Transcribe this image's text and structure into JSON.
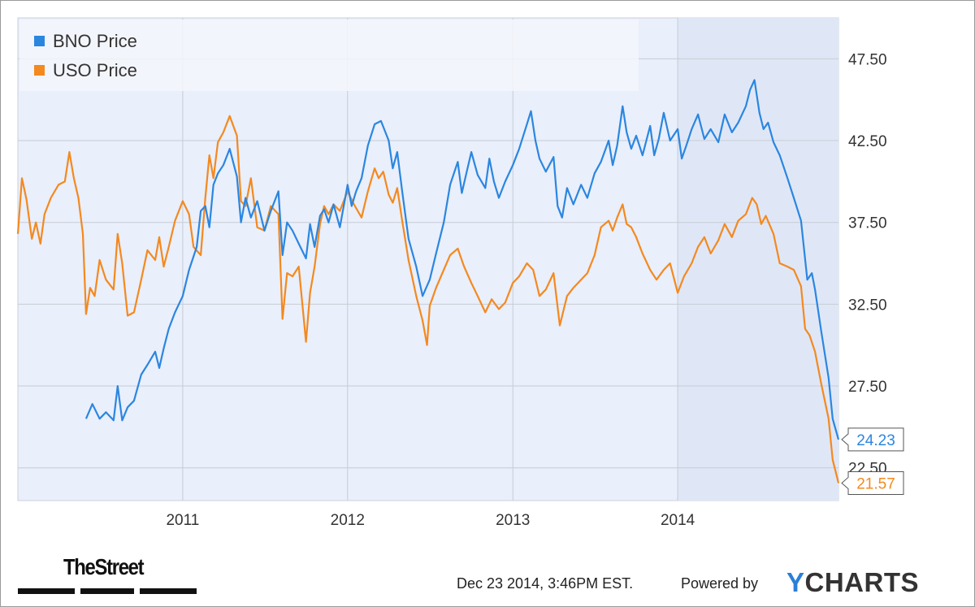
{
  "chart_data": {
    "type": "line",
    "x_axis": {
      "type": "date",
      "range": [
        "2010-01-01",
        "2014-12-23"
      ],
      "tick_labels": [
        "2011",
        "2012",
        "2013",
        "2014"
      ]
    },
    "y_axis": {
      "position": "right",
      "range": [
        20.5,
        50.0
      ],
      "ticks": [
        22.5,
        27.5,
        32.5,
        37.5,
        42.5,
        47.5
      ],
      "tick_labels": [
        "22.50",
        "27.50",
        "32.50",
        "37.50",
        "42.50",
        "47.50"
      ]
    },
    "grid": true,
    "legend": {
      "placement": "top-left"
    },
    "series": [
      {
        "name": "BNO Price",
        "color": "#2b86e0",
        "last_value_label": "24.23",
        "points": [
          [
            "2010-06-01",
            25.5
          ],
          [
            "2010-06-15",
            26.4
          ],
          [
            "2010-07-01",
            25.5
          ],
          [
            "2010-07-15",
            25.9
          ],
          [
            "2010-08-01",
            25.4
          ],
          [
            "2010-08-10",
            27.5
          ],
          [
            "2010-08-20",
            25.4
          ],
          [
            "2010-09-01",
            26.2
          ],
          [
            "2010-09-15",
            26.6
          ],
          [
            "2010-10-01",
            28.2
          ],
          [
            "2010-10-15",
            28.8
          ],
          [
            "2010-11-01",
            29.6
          ],
          [
            "2010-11-10",
            28.6
          ],
          [
            "2010-11-20",
            29.8
          ],
          [
            "2010-12-01",
            31.0
          ],
          [
            "2010-12-15",
            32.0
          ],
          [
            "2011-01-01",
            33.0
          ],
          [
            "2011-01-15",
            34.6
          ],
          [
            "2011-02-01",
            36.0
          ],
          [
            "2011-02-10",
            38.2
          ],
          [
            "2011-02-20",
            38.5
          ],
          [
            "2011-03-01",
            37.2
          ],
          [
            "2011-03-10",
            39.8
          ],
          [
            "2011-03-20",
            40.5
          ],
          [
            "2011-04-01",
            41.0
          ],
          [
            "2011-04-15",
            42.0
          ],
          [
            "2011-05-01",
            40.3
          ],
          [
            "2011-05-10",
            37.5
          ],
          [
            "2011-05-20",
            39.0
          ],
          [
            "2011-06-01",
            37.8
          ],
          [
            "2011-06-15",
            38.8
          ],
          [
            "2011-07-01",
            37.0
          ],
          [
            "2011-07-15",
            38.2
          ],
          [
            "2011-08-01",
            39.4
          ],
          [
            "2011-08-10",
            35.5
          ],
          [
            "2011-08-20",
            37.5
          ],
          [
            "2011-09-01",
            37.0
          ],
          [
            "2011-09-15",
            36.2
          ],
          [
            "2011-10-01",
            35.3
          ],
          [
            "2011-10-10",
            37.4
          ],
          [
            "2011-10-20",
            36.0
          ],
          [
            "2011-11-01",
            37.9
          ],
          [
            "2011-11-10",
            38.3
          ],
          [
            "2011-11-20",
            37.5
          ],
          [
            "2011-12-01",
            38.6
          ],
          [
            "2011-12-15",
            37.2
          ],
          [
            "2012-01-01",
            39.8
          ],
          [
            "2012-01-10",
            38.5
          ],
          [
            "2012-01-20",
            39.4
          ],
          [
            "2012-02-01",
            40.2
          ],
          [
            "2012-02-15",
            42.2
          ],
          [
            "2012-03-01",
            43.5
          ],
          [
            "2012-03-15",
            43.7
          ],
          [
            "2012-04-01",
            42.5
          ],
          [
            "2012-04-10",
            40.8
          ],
          [
            "2012-04-20",
            41.8
          ],
          [
            "2012-05-01",
            39.4
          ],
          [
            "2012-05-15",
            36.5
          ],
          [
            "2012-06-01",
            34.8
          ],
          [
            "2012-06-15",
            33.0
          ],
          [
            "2012-07-01",
            34.0
          ],
          [
            "2012-07-15",
            35.6
          ],
          [
            "2012-08-01",
            37.5
          ],
          [
            "2012-08-15",
            39.8
          ],
          [
            "2012-09-01",
            41.2
          ],
          [
            "2012-09-10",
            39.3
          ],
          [
            "2012-09-20",
            40.5
          ],
          [
            "2012-10-01",
            41.8
          ],
          [
            "2012-10-15",
            40.4
          ],
          [
            "2012-11-01",
            39.6
          ],
          [
            "2012-11-10",
            41.4
          ],
          [
            "2012-11-20",
            40.0
          ],
          [
            "2012-12-01",
            39.0
          ],
          [
            "2012-12-15",
            40.0
          ],
          [
            "2013-01-01",
            41.0
          ],
          [
            "2013-01-15",
            42.0
          ],
          [
            "2013-02-01",
            43.5
          ],
          [
            "2013-02-10",
            44.3
          ],
          [
            "2013-02-20",
            42.5
          ],
          [
            "2013-03-01",
            41.4
          ],
          [
            "2013-03-15",
            40.6
          ],
          [
            "2013-04-01",
            41.5
          ],
          [
            "2013-04-10",
            38.5
          ],
          [
            "2013-04-20",
            37.8
          ],
          [
            "2013-05-01",
            39.6
          ],
          [
            "2013-05-15",
            38.6
          ],
          [
            "2013-06-01",
            39.8
          ],
          [
            "2013-06-15",
            39.0
          ],
          [
            "2013-07-01",
            40.5
          ],
          [
            "2013-07-15",
            41.2
          ],
          [
            "2013-08-01",
            42.5
          ],
          [
            "2013-08-10",
            41.0
          ],
          [
            "2013-08-20",
            42.2
          ],
          [
            "2013-09-01",
            44.6
          ],
          [
            "2013-09-10",
            43.0
          ],
          [
            "2013-09-20",
            42.0
          ],
          [
            "2013-10-01",
            42.8
          ],
          [
            "2013-10-15",
            41.6
          ],
          [
            "2013-11-01",
            43.4
          ],
          [
            "2013-11-10",
            41.6
          ],
          [
            "2013-11-20",
            42.6
          ],
          [
            "2013-12-01",
            44.2
          ],
          [
            "2013-12-15",
            42.5
          ],
          [
            "2014-01-01",
            43.2
          ],
          [
            "2014-01-10",
            41.4
          ],
          [
            "2014-01-20",
            42.2
          ],
          [
            "2014-02-01",
            43.2
          ],
          [
            "2014-02-15",
            44.1
          ],
          [
            "2014-03-01",
            42.6
          ],
          [
            "2014-03-15",
            43.2
          ],
          [
            "2014-04-01",
            42.4
          ],
          [
            "2014-04-15",
            44.1
          ],
          [
            "2014-05-01",
            43.0
          ],
          [
            "2014-05-15",
            43.6
          ],
          [
            "2014-06-01",
            44.6
          ],
          [
            "2014-06-10",
            45.6
          ],
          [
            "2014-06-20",
            46.2
          ],
          [
            "2014-07-01",
            44.2
          ],
          [
            "2014-07-10",
            43.2
          ],
          [
            "2014-07-20",
            43.6
          ],
          [
            "2014-08-01",
            42.4
          ],
          [
            "2014-08-15",
            41.6
          ],
          [
            "2014-09-01",
            40.2
          ],
          [
            "2014-09-15",
            39.0
          ],
          [
            "2014-10-01",
            37.6
          ],
          [
            "2014-10-15",
            34.0
          ],
          [
            "2014-10-25",
            34.4
          ],
          [
            "2014-11-01",
            33.4
          ],
          [
            "2014-11-15",
            30.8
          ],
          [
            "2014-12-01",
            28.0
          ],
          [
            "2014-12-10",
            25.5
          ],
          [
            "2014-12-23",
            24.23
          ]
        ]
      },
      {
        "name": "USO Price",
        "color": "#f4891f",
        "last_value_label": "21.57",
        "points": [
          [
            "2010-01-01",
            36.8
          ],
          [
            "2010-01-10",
            40.2
          ],
          [
            "2010-01-20",
            38.9
          ],
          [
            "2010-02-01",
            36.5
          ],
          [
            "2010-02-10",
            37.5
          ],
          [
            "2010-02-20",
            36.2
          ],
          [
            "2010-03-01",
            38.0
          ],
          [
            "2010-03-15",
            39.0
          ],
          [
            "2010-04-01",
            39.8
          ],
          [
            "2010-04-15",
            40.0
          ],
          [
            "2010-04-25",
            41.8
          ],
          [
            "2010-05-05",
            40.2
          ],
          [
            "2010-05-15",
            39.0
          ],
          [
            "2010-05-25",
            36.8
          ],
          [
            "2010-06-01",
            31.9
          ],
          [
            "2010-06-10",
            33.5
          ],
          [
            "2010-06-20",
            33.0
          ],
          [
            "2010-07-01",
            35.2
          ],
          [
            "2010-07-15",
            34.0
          ],
          [
            "2010-08-01",
            33.4
          ],
          [
            "2010-08-10",
            36.8
          ],
          [
            "2010-08-20",
            35.0
          ],
          [
            "2010-09-01",
            31.8
          ],
          [
            "2010-09-15",
            32.0
          ],
          [
            "2010-10-01",
            34.0
          ],
          [
            "2010-10-15",
            35.8
          ],
          [
            "2010-11-01",
            35.2
          ],
          [
            "2010-11-10",
            36.6
          ],
          [
            "2010-11-20",
            34.8
          ],
          [
            "2010-12-01",
            36.0
          ],
          [
            "2010-12-15",
            37.6
          ],
          [
            "2011-01-01",
            38.8
          ],
          [
            "2011-01-15",
            38.0
          ],
          [
            "2011-01-25",
            36.0
          ],
          [
            "2011-02-10",
            35.5
          ],
          [
            "2011-02-20",
            39.0
          ],
          [
            "2011-03-01",
            41.6
          ],
          [
            "2011-03-10",
            40.2
          ],
          [
            "2011-03-20",
            42.4
          ],
          [
            "2011-04-01",
            43.0
          ],
          [
            "2011-04-15",
            44.0
          ],
          [
            "2011-05-01",
            42.8
          ],
          [
            "2011-05-10",
            38.8
          ],
          [
            "2011-05-20",
            38.5
          ],
          [
            "2011-06-01",
            40.2
          ],
          [
            "2011-06-15",
            37.2
          ],
          [
            "2011-07-01",
            37.0
          ],
          [
            "2011-07-15",
            38.5
          ],
          [
            "2011-08-01",
            38.0
          ],
          [
            "2011-08-10",
            31.6
          ],
          [
            "2011-08-20",
            34.4
          ],
          [
            "2011-09-01",
            34.2
          ],
          [
            "2011-09-15",
            34.8
          ],
          [
            "2011-10-01",
            30.2
          ],
          [
            "2011-10-10",
            33.2
          ],
          [
            "2011-10-20",
            34.8
          ],
          [
            "2011-11-01",
            37.4
          ],
          [
            "2011-11-10",
            38.5
          ],
          [
            "2011-11-20",
            38.0
          ],
          [
            "2011-12-01",
            38.6
          ],
          [
            "2011-12-15",
            38.2
          ],
          [
            "2012-01-01",
            39.4
          ],
          [
            "2012-01-15",
            38.6
          ],
          [
            "2012-02-01",
            37.8
          ],
          [
            "2012-02-15",
            39.4
          ],
          [
            "2012-03-01",
            40.8
          ],
          [
            "2012-03-10",
            40.2
          ],
          [
            "2012-03-20",
            40.6
          ],
          [
            "2012-04-01",
            39.2
          ],
          [
            "2012-04-10",
            38.7
          ],
          [
            "2012-04-20",
            39.6
          ],
          [
            "2012-05-01",
            37.6
          ],
          [
            "2012-05-15",
            35.2
          ],
          [
            "2012-06-01",
            33.0
          ],
          [
            "2012-06-15",
            31.5
          ],
          [
            "2012-06-25",
            30.0
          ],
          [
            "2012-07-01",
            32.4
          ],
          [
            "2012-07-15",
            33.5
          ],
          [
            "2012-08-01",
            34.6
          ],
          [
            "2012-08-15",
            35.5
          ],
          [
            "2012-09-01",
            35.9
          ],
          [
            "2012-09-15",
            34.8
          ],
          [
            "2012-10-01",
            33.8
          ],
          [
            "2012-10-15",
            33.0
          ],
          [
            "2012-11-01",
            32.0
          ],
          [
            "2012-11-15",
            32.8
          ],
          [
            "2012-12-01",
            32.2
          ],
          [
            "2012-12-15",
            32.6
          ],
          [
            "2013-01-01",
            33.8
          ],
          [
            "2013-01-15",
            34.2
          ],
          [
            "2013-02-01",
            35.0
          ],
          [
            "2013-02-15",
            34.6
          ],
          [
            "2013-03-01",
            33.0
          ],
          [
            "2013-03-15",
            33.4
          ],
          [
            "2013-04-01",
            34.4
          ],
          [
            "2013-04-15",
            31.2
          ],
          [
            "2013-05-01",
            33.0
          ],
          [
            "2013-05-15",
            33.5
          ],
          [
            "2013-06-01",
            34.0
          ],
          [
            "2013-06-15",
            34.4
          ],
          [
            "2013-07-01",
            35.5
          ],
          [
            "2013-07-15",
            37.2
          ],
          [
            "2013-08-01",
            37.6
          ],
          [
            "2013-08-10",
            37.0
          ],
          [
            "2013-08-20",
            37.8
          ],
          [
            "2013-09-01",
            38.6
          ],
          [
            "2013-09-10",
            37.4
          ],
          [
            "2013-09-20",
            37.2
          ],
          [
            "2013-10-01",
            36.6
          ],
          [
            "2013-10-15",
            35.6
          ],
          [
            "2013-11-01",
            34.6
          ],
          [
            "2013-11-15",
            34.0
          ],
          [
            "2013-12-01",
            34.6
          ],
          [
            "2013-12-15",
            35.0
          ],
          [
            "2014-01-01",
            33.2
          ],
          [
            "2014-01-15",
            34.2
          ],
          [
            "2014-02-01",
            35.0
          ],
          [
            "2014-02-15",
            36.0
          ],
          [
            "2014-03-01",
            36.6
          ],
          [
            "2014-03-15",
            35.6
          ],
          [
            "2014-04-01",
            36.4
          ],
          [
            "2014-04-15",
            37.4
          ],
          [
            "2014-05-01",
            36.6
          ],
          [
            "2014-05-15",
            37.6
          ],
          [
            "2014-06-01",
            38.0
          ],
          [
            "2014-06-15",
            39.0
          ],
          [
            "2014-06-25",
            38.6
          ],
          [
            "2014-07-05",
            37.4
          ],
          [
            "2014-07-15",
            37.9
          ],
          [
            "2014-08-01",
            36.8
          ],
          [
            "2014-08-15",
            35.0
          ],
          [
            "2014-09-01",
            34.8
          ],
          [
            "2014-09-15",
            34.6
          ],
          [
            "2014-10-01",
            33.6
          ],
          [
            "2014-10-10",
            31.0
          ],
          [
            "2014-10-20",
            30.6
          ],
          [
            "2014-11-01",
            29.6
          ],
          [
            "2014-11-15",
            27.6
          ],
          [
            "2014-12-01",
            25.5
          ],
          [
            "2014-12-10",
            23.0
          ],
          [
            "2014-12-23",
            21.57
          ]
        ]
      }
    ]
  },
  "footer": {
    "timestamp": "Dec 23 2014, 3:46PM EST.",
    "powered_by": "Powered by",
    "brand_right_y": "Y",
    "brand_right_rest": "CHARTS",
    "brand_left": "TheStreet"
  }
}
